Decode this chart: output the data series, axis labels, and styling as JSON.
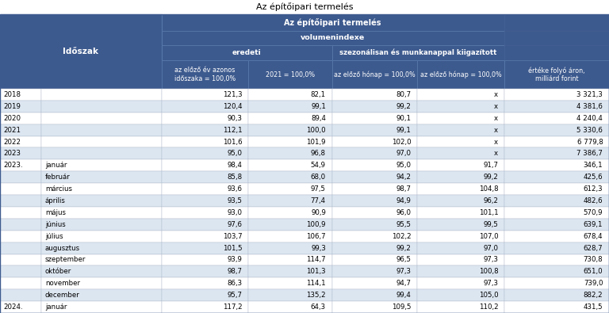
{
  "title": "Az építőipari termelés",
  "header1": "Az építőipari termelés",
  "header_volumen": "volumenindexe",
  "header_eredeti": "eredeti",
  "header_szezon": "szezonálisan és munkanappal kiigazított",
  "header_col1": "az előző év azonos\nidőszaka = 100,0%",
  "header_col2": "2021 = 100,0%",
  "header_col3": "az előző hónap = 100,0%",
  "header_col4": "az előző hónap = 100,0%",
  "header_col5": "értéke folyó áron,\nmilliárd forint",
  "col_idoszak": "Időszak",
  "rows": [
    [
      "2018",
      "",
      "121,3",
      "82,1",
      "80,7",
      "x",
      "3 321,3"
    ],
    [
      "2019",
      "",
      "120,4",
      "99,1",
      "99,2",
      "x",
      "4 381,6"
    ],
    [
      "2020",
      "",
      "90,3",
      "89,4",
      "90,1",
      "x",
      "4 240,4"
    ],
    [
      "2021",
      "",
      "112,1",
      "100,0",
      "99,1",
      "x",
      "5 330,6"
    ],
    [
      "2022",
      "",
      "101,6",
      "101,9",
      "102,0",
      "x",
      "6 779,8"
    ],
    [
      "2023",
      "",
      "95,0",
      "96,8",
      "97,0",
      "x",
      "7 386,7"
    ],
    [
      "2023.",
      "január",
      "98,4",
      "54,9",
      "95,0",
      "91,7",
      "346,1"
    ],
    [
      "",
      "február",
      "85,8",
      "68,0",
      "94,2",
      "99,2",
      "425,6"
    ],
    [
      "",
      "március",
      "93,6",
      "97,5",
      "98,7",
      "104,8",
      "612,3"
    ],
    [
      "",
      "április",
      "93,5",
      "77,4",
      "94,9",
      "96,2",
      "482,6"
    ],
    [
      "",
      "május",
      "93,0",
      "90,9",
      "96,0",
      "101,1",
      "570,9"
    ],
    [
      "",
      "június",
      "97,6",
      "100,9",
      "95,5",
      "99,5",
      "639,1"
    ],
    [
      "",
      "július",
      "103,7",
      "106,7",
      "102,2",
      "107,0",
      "678,4"
    ],
    [
      "",
      "augusztus",
      "101,5",
      "99,3",
      "99,2",
      "97,0",
      "628,7"
    ],
    [
      "",
      "szeptember",
      "93,9",
      "114,7",
      "96,5",
      "97,3",
      "730,8"
    ],
    [
      "",
      "október",
      "98,7",
      "101,3",
      "97,3",
      "100,8",
      "651,0"
    ],
    [
      "",
      "november",
      "86,3",
      "114,1",
      "94,7",
      "97,3",
      "739,0"
    ],
    [
      "",
      "december",
      "95,7",
      "135,2",
      "99,4",
      "105,0",
      "882,2"
    ],
    [
      "2024.",
      "január",
      "117,2",
      "64,3",
      "109,5",
      "110,2",
      "431,5"
    ]
  ],
  "blue": "#3d5a8e",
  "light_blue": "#dce6f1",
  "white": "#ffffff",
  "border": "#3d5a8e",
  "grid_color": "#b0bbcc"
}
